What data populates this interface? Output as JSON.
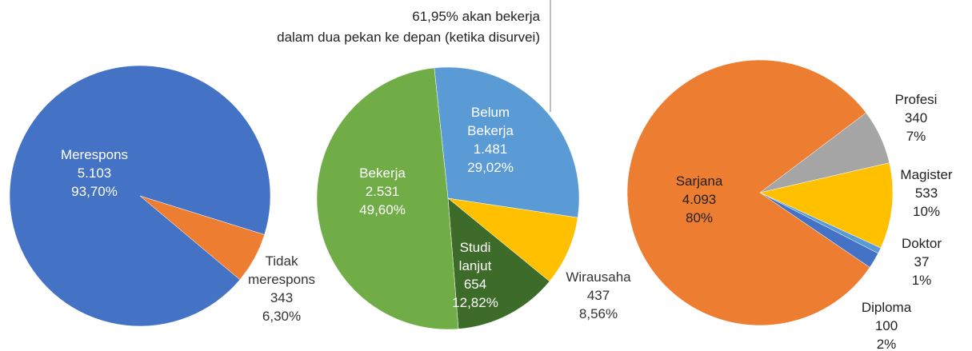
{
  "chart_data": [
    {
      "type": "pie",
      "categories": [
        "Merespons",
        "Tidak merespons"
      ],
      "values": [
        5103,
        343
      ],
      "value_labels": [
        "5.103",
        "343"
      ],
      "percents": [
        93.7,
        6.3
      ],
      "percent_labels": [
        "93,70%",
        "6,30%"
      ],
      "colors": [
        "#4472c4",
        "#ed7d31"
      ]
    },
    {
      "type": "pie",
      "annotation": [
        "61,95% akan bekerja",
        "dalam dua pekan ke depan (ketika disurvei)"
      ],
      "categories": [
        "Belum Bekerja",
        "Wirausaha",
        "Studi lanjut",
        "Bekerja"
      ],
      "values": [
        1481,
        437,
        654,
        2531
      ],
      "value_labels": [
        "1.481",
        "437",
        "654",
        "2.531"
      ],
      "percents": [
        29.02,
        8.56,
        12.82,
        49.6
      ],
      "percent_labels": [
        "29,02%",
        "8,56%",
        "12,82%",
        "49,60%"
      ],
      "colors": [
        "#5b9bd5",
        "#ffc000",
        "#3d6b2a",
        "#70ad47"
      ]
    },
    {
      "type": "pie",
      "categories": [
        "Profesi",
        "Magister",
        "Doktor",
        "Diploma",
        "Sarjana"
      ],
      "values": [
        340,
        533,
        37,
        100,
        4093
      ],
      "value_labels": [
        "340",
        "533",
        "37",
        "100",
        "4.093"
      ],
      "percents": [
        7,
        10,
        1,
        2,
        80
      ],
      "percent_labels": [
        "7%",
        "10%",
        "1%",
        "2%",
        "80%"
      ],
      "colors": [
        "#a5a5a5",
        "#ffc000",
        "#5b9bd5",
        "#4472c4",
        "#ed7d31"
      ]
    }
  ]
}
